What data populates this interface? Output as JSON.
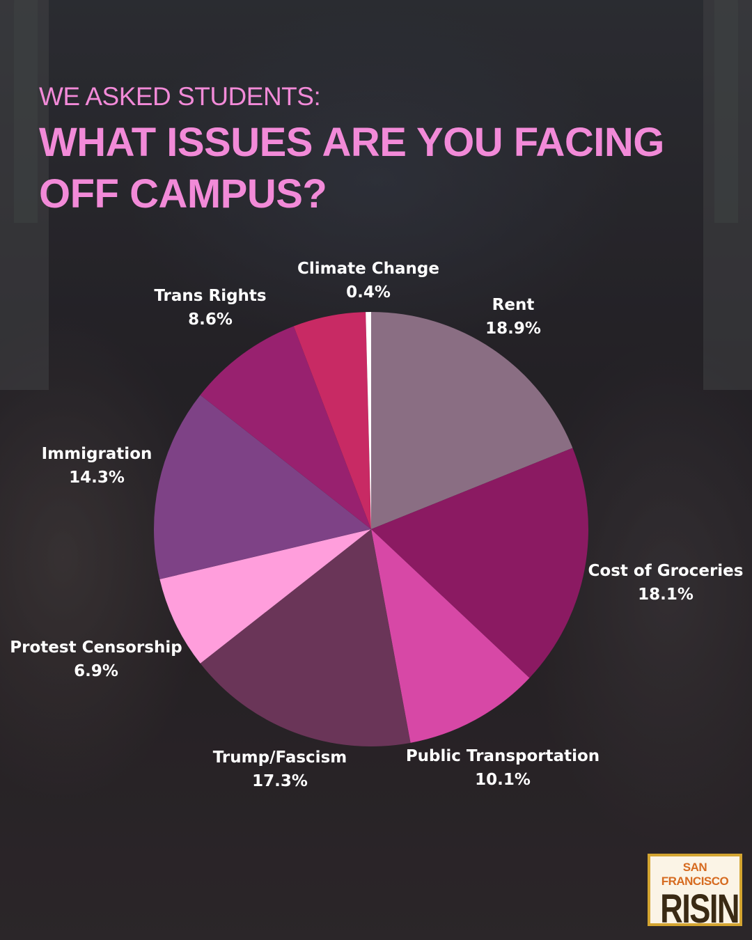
{
  "header": {
    "kicker": "WE ASKED STUDENTS:",
    "title": "WHAT ISSUES ARE YOU FACING OFF CAMPUS?"
  },
  "chart_data": {
    "type": "pie",
    "title": "WHAT ISSUES ARE YOU FACING OFF CAMPUS?",
    "unit": "%",
    "slices": [
      {
        "label": "Rent",
        "value": 18.9,
        "display": "18.9%",
        "color": "#8a6e83"
      },
      {
        "label": "Cost of Groceries",
        "value": 18.1,
        "display": "18.1%",
        "color": "#8b1a62"
      },
      {
        "label": "Public Transportation",
        "value": 10.1,
        "display": "10.1%",
        "color": "#d748a6"
      },
      {
        "label": "Trump/Fascism",
        "value": 17.3,
        "display": "17.3%",
        "color": "#6a3558"
      },
      {
        "label": "Protest Censorship",
        "value": 6.9,
        "display": "6.9%",
        "color": "#ff9edc"
      },
      {
        "label": "Immigration",
        "value": 14.3,
        "display": "14.3%",
        "color": "#7e4286"
      },
      {
        "label": "Trans Rights",
        "value": 8.6,
        "display": "8.6%",
        "color": "#98216f"
      },
      {
        "label": "Climate Change",
        "value": 0.4,
        "display": "0.4%",
        "color": "#ffffff"
      }
    ],
    "extra_slice_color": "#c82a64",
    "legend": "none",
    "labels_position": "outside"
  },
  "logo": {
    "top": "SAN FRANCISCO",
    "main": "RISING"
  }
}
